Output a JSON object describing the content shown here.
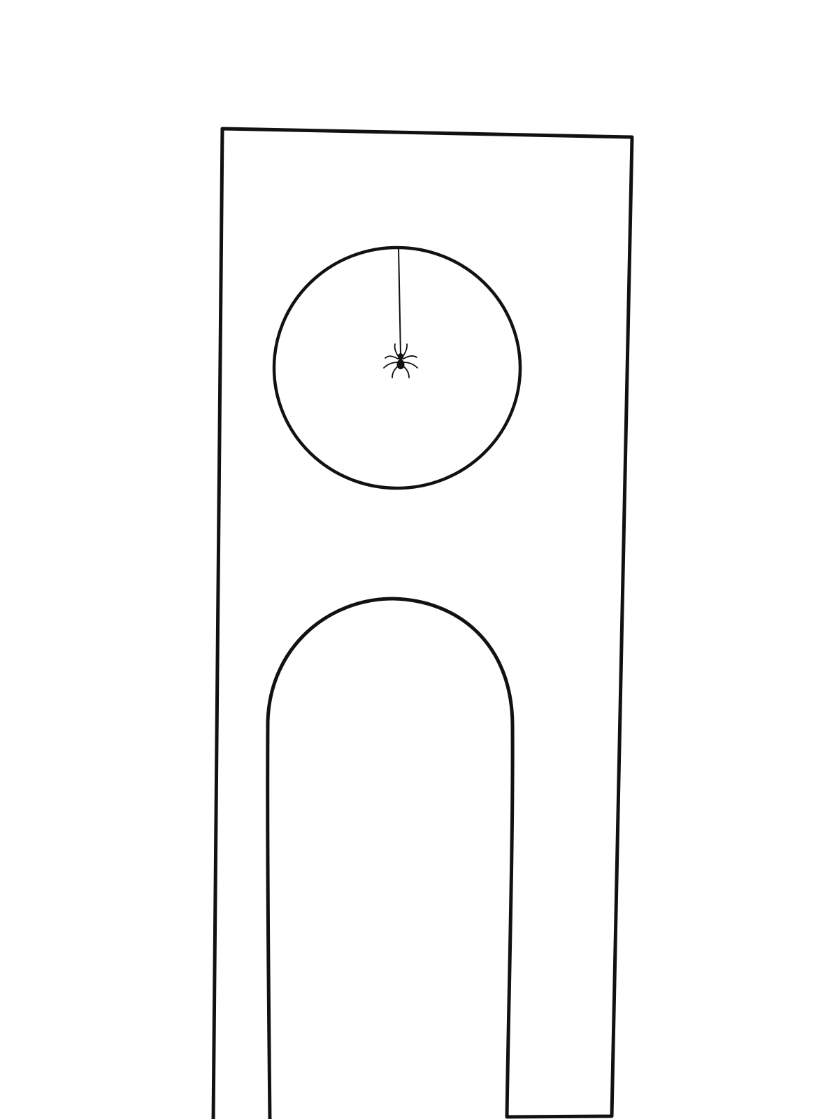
{
  "drawing": {
    "background_color": "#ffffff",
    "ink_color": "#111111",
    "elements": [
      "tower-outline",
      "round-window",
      "arched-doorway",
      "spider-thread",
      "spider-icon"
    ]
  }
}
